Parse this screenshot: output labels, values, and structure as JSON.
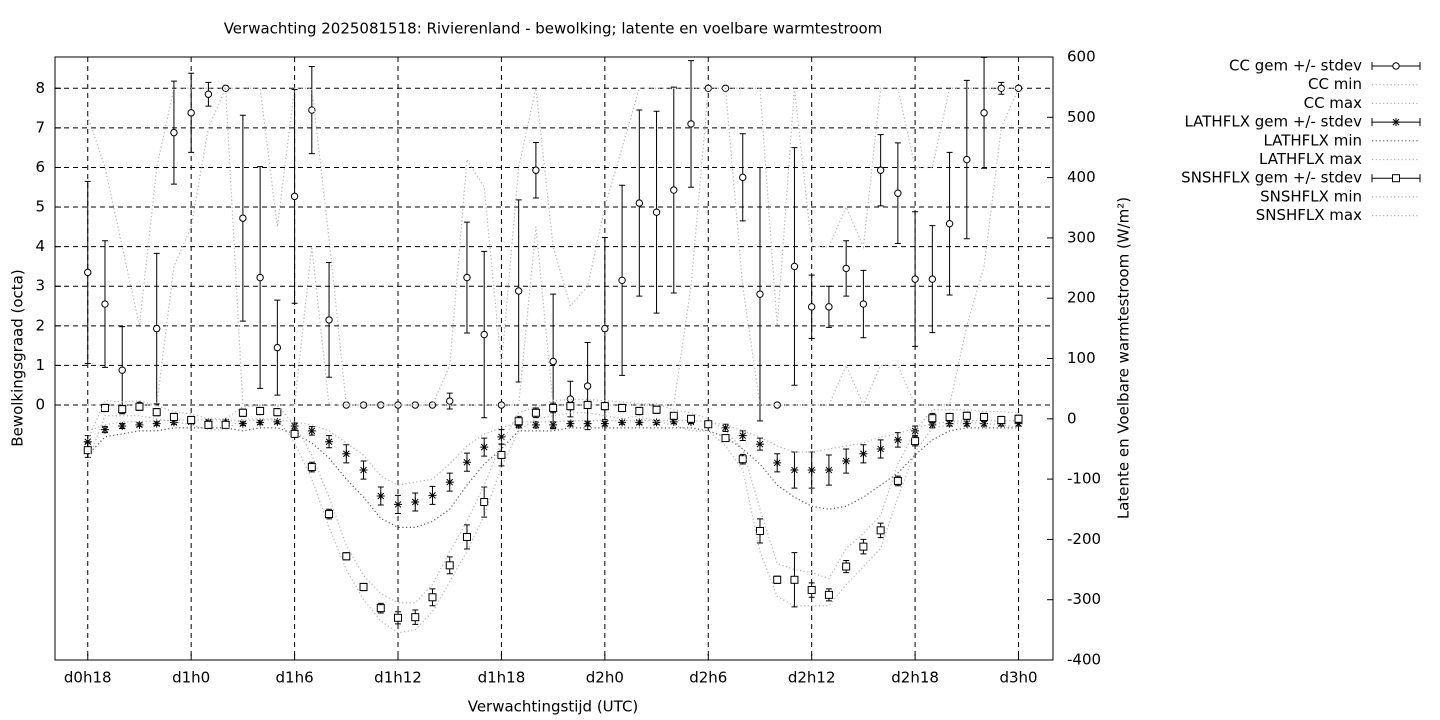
{
  "chart_data": {
    "type": "errorbar",
    "title": "Verwachting 2025081518: Rivierenland - bewolking; latente en voelbare warmtestroom",
    "xlabel": "Verwachtingstijd (UTC)",
    "ylabel": "Bewolkingsgraad (octa)",
    "y2label": "Latente en Voelbare warmtestroom (W/m²)",
    "grid": true,
    "legend": "outside-top-right",
    "xlim": [
      16.1,
      74.0
    ],
    "xticks": [
      {
        "value": 18,
        "label": "d0h18"
      },
      {
        "value": 24,
        "label": "d1h0"
      },
      {
        "value": 30,
        "label": "d1h6"
      },
      {
        "value": 36,
        "label": "d1h12"
      },
      {
        "value": 42,
        "label": "d1h18"
      },
      {
        "value": 48,
        "label": "d2h0"
      },
      {
        "value": 54,
        "label": "d2h6"
      },
      {
        "value": 60,
        "label": "d2h12"
      },
      {
        "value": 66,
        "label": "d2h18"
      },
      {
        "value": 72,
        "label": "d3h0"
      }
    ],
    "ylim": [
      -6.44,
      8.79
    ],
    "yticks": [
      0,
      1,
      2,
      3,
      4,
      5,
      6,
      7,
      8
    ],
    "y2lim": [
      -400,
      600
    ],
    "y2ticks": [
      -400,
      -300,
      -200,
      -100,
      0,
      100,
      200,
      300,
      400,
      500,
      600
    ],
    "x": [
      18,
      19,
      20,
      21,
      22,
      23,
      24,
      25,
      26,
      27,
      28,
      29,
      30,
      31,
      32,
      33,
      34,
      35,
      36,
      37,
      38,
      39,
      40,
      41,
      42,
      43,
      44,
      45,
      46,
      47,
      48,
      49,
      50,
      51,
      52,
      53,
      54,
      55,
      56,
      57,
      58,
      59,
      60,
      61,
      62,
      63,
      64,
      65,
      66,
      67,
      68,
      69,
      70,
      71,
      72
    ],
    "series": [
      {
        "name": "CC gem +/- stdev",
        "color": "#000000",
        "marker": "circle",
        "axis": "y",
        "values": [
          3.35,
          2.55,
          0.88,
          0,
          1.93,
          6.88,
          7.38,
          7.85,
          8,
          4.72,
          3.22,
          1.45,
          5.27,
          7.45,
          2.15,
          0,
          0,
          0,
          0,
          0,
          0,
          0.1,
          3.22,
          1.78,
          0,
          2.88,
          5.93,
          1.1,
          0.15,
          0.48,
          1.93,
          3.15,
          5.1,
          4.87,
          5.43,
          7.1,
          8,
          8,
          5.75,
          2.8,
          0,
          3.5,
          2.48,
          2.48,
          3.45,
          2.55,
          5.93,
          5.35,
          3.18,
          3.18,
          4.58,
          6.2,
          7.38,
          8,
          8
        ],
        "errors": [
          2.3,
          1.6,
          1.1,
          0,
          1.9,
          1.3,
          1,
          0.3,
          0,
          2.6,
          2.8,
          1.2,
          2.7,
          1.1,
          1.45,
          0,
          0,
          0,
          0,
          0,
          0,
          0.2,
          1.4,
          2.1,
          0,
          2.3,
          0.7,
          1.7,
          0.45,
          1.1,
          2.3,
          2.4,
          2.35,
          2.55,
          2.6,
          1.6,
          0,
          0,
          1.1,
          3.2,
          0,
          3,
          0.8,
          0.52,
          0.7,
          0.85,
          0.9,
          1.27,
          1.7,
          1.35,
          1.8,
          2,
          1.4,
          0.15,
          0
        ]
      },
      {
        "name": "CC min",
        "color": "#b0b0b0",
        "axis": "y",
        "values": [
          0,
          0,
          0,
          0,
          0,
          3.5,
          4.5,
          7,
          8,
          0,
          0,
          0,
          0,
          4,
          0,
          0,
          0,
          0,
          0,
          0,
          0,
          0,
          0,
          0,
          0,
          0,
          4.5,
          0,
          0,
          0,
          0,
          0,
          0,
          0,
          0,
          3,
          8,
          8,
          3,
          0,
          0,
          0,
          0,
          0,
          1,
          0,
          1,
          1,
          0,
          0,
          0,
          2,
          3.5,
          7,
          8
        ]
      },
      {
        "name": "CC max",
        "color": "#b0b0b0",
        "axis": "y",
        "values": [
          7.3,
          6,
          4,
          2,
          6,
          8,
          8,
          8,
          8,
          8,
          8,
          4.5,
          8,
          8,
          4.2,
          0,
          0,
          0,
          0,
          0,
          0,
          1,
          6.2,
          5.5,
          1,
          6,
          8,
          4,
          2.5,
          3,
          5,
          6.5,
          8,
          8,
          8,
          8,
          8,
          8,
          8,
          8,
          2,
          8,
          4,
          4,
          5,
          4,
          8,
          8,
          6,
          6,
          8,
          8,
          8,
          8,
          8
        ]
      },
      {
        "name": "LATHFLX gem +/- stdev",
        "color": "#000000",
        "marker": "star",
        "axis": "y2",
        "values": [
          -38,
          -18,
          -12,
          -10,
          -8,
          -6,
          -5,
          -5,
          -5,
          -8,
          -6,
          -5,
          -12,
          -20,
          -38,
          -58,
          -85,
          -128,
          -142,
          -138,
          -127,
          -105,
          -72,
          -47,
          -30,
          -10,
          -10,
          -10,
          -8,
          -8,
          -8,
          -6,
          -6,
          -6,
          -5,
          -5,
          -8,
          -15,
          -28,
          -42,
          -73,
          -85,
          -85,
          -85,
          -70,
          -58,
          -50,
          -35,
          -20,
          -10,
          -8,
          -8,
          -8,
          -8,
          -8
        ],
        "errors": [
          10,
          5,
          4,
          3,
          3,
          3,
          3,
          3,
          3,
          3,
          3,
          3,
          5,
          7,
          10,
          15,
          15,
          15,
          15,
          15,
          15,
          15,
          15,
          15,
          12,
          5,
          5,
          5,
          4,
          4,
          4,
          3,
          3,
          3,
          3,
          3,
          4,
          6,
          8,
          10,
          15,
          30,
          30,
          25,
          20,
          15,
          15,
          12,
          8,
          5,
          4,
          4,
          4,
          4,
          4
        ]
      },
      {
        "name": "LATHFLX min",
        "color": "#555555",
        "axis": "y2",
        "values": [
          -60,
          -30,
          -25,
          -20,
          -20,
          -15,
          -15,
          -15,
          -15,
          -20,
          -15,
          -15,
          -25,
          -40,
          -65,
          -100,
          -130,
          -165,
          -180,
          -180,
          -170,
          -150,
          -110,
          -75,
          -50,
          -20,
          -20,
          -20,
          -15,
          -15,
          -15,
          -15,
          -15,
          -15,
          -15,
          -15,
          -20,
          -30,
          -50,
          -75,
          -110,
          -130,
          -145,
          -150,
          -145,
          -130,
          -110,
          -90,
          -60,
          -35,
          -20,
          -15,
          -15,
          -15,
          -15
        ]
      },
      {
        "name": "LATHFLX max",
        "color": "#b0b0b0",
        "axis": "y2",
        "values": [
          -20,
          -10,
          -5,
          -5,
          -3,
          -2,
          -2,
          -2,
          -2,
          -3,
          -2,
          -2,
          -5,
          -10,
          -20,
          -40,
          -60,
          -95,
          -110,
          -105,
          -100,
          -75,
          -45,
          -25,
          -15,
          -5,
          -5,
          -5,
          -3,
          -3,
          -3,
          -3,
          -3,
          -3,
          -3,
          -3,
          -5,
          -10,
          -20,
          -30,
          -45,
          -55,
          -55,
          -50,
          -45,
          -40,
          -30,
          -25,
          -15,
          -8,
          -5,
          -3,
          -3,
          -3,
          -3
        ]
      },
      {
        "name": "SNSHFLX gem +/- stdev",
        "color": "#000000",
        "marker": "square",
        "axis": "y2",
        "values": [
          -52,
          18,
          16,
          20,
          11,
          3,
          -2,
          -10,
          -10,
          10,
          13,
          11,
          -25,
          -80,
          -158,
          -228,
          -279,
          -314,
          -330,
          -329,
          -296,
          -243,
          -196,
          -138,
          -60,
          -4,
          10,
          18,
          21,
          23,
          21,
          18,
          13,
          15,
          5,
          0,
          -9,
          -32,
          -67,
          -186,
          -267,
          -267,
          -284,
          -292,
          -245,
          -212,
          -185,
          -103,
          -37,
          1,
          3,
          5,
          3,
          -2,
          0
        ],
        "errors": [
          12,
          6,
          6,
          6,
          6,
          6,
          6,
          6,
          5,
          6,
          6,
          6,
          6,
          8,
          8,
          6,
          6,
          8,
          10,
          12,
          14,
          14,
          20,
          25,
          18,
          8,
          8,
          8,
          6,
          6,
          6,
          6,
          6,
          6,
          5,
          5,
          5,
          5,
          8,
          20,
          6,
          45,
          12,
          10,
          10,
          12,
          12,
          8,
          8,
          8,
          6,
          6,
          6,
          6,
          6
        ]
      },
      {
        "name": "SNSHFLX min",
        "color": "#b0b0b0",
        "axis": "y2",
        "values": [
          -70,
          5,
          5,
          5,
          0,
          -5,
          -10,
          -18,
          -18,
          0,
          0,
          0,
          -40,
          -100,
          -180,
          -250,
          -300,
          -335,
          -355,
          -350,
          -320,
          -270,
          -220,
          -160,
          -80,
          -20,
          0,
          5,
          10,
          10,
          5,
          0,
          5,
          -5,
          -10,
          -20,
          -20,
          -45,
          -85,
          -220,
          -295,
          -310,
          -310,
          -310,
          -275,
          -245,
          -215,
          -130,
          -55,
          -15,
          -10,
          -5,
          -8,
          -10,
          -15
        ]
      },
      {
        "name": "SNSHFLX max",
        "color": "#b0b0b0",
        "axis": "y2",
        "values": [
          -35,
          30,
          28,
          30,
          22,
          12,
          8,
          0,
          0,
          20,
          22,
          22,
          -10,
          -60,
          -130,
          -210,
          -260,
          -290,
          -305,
          -305,
          -275,
          -220,
          -170,
          -110,
          -40,
          10,
          20,
          30,
          32,
          32,
          30,
          28,
          25,
          25,
          15,
          10,
          0,
          -20,
          -50,
          -150,
          -240,
          -250,
          -255,
          -265,
          -215,
          -190,
          -160,
          -75,
          -20,
          15,
          15,
          15,
          12,
          12,
          10
        ]
      }
    ]
  }
}
